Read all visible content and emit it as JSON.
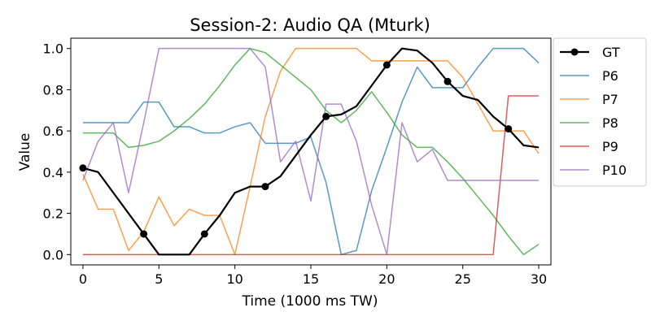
{
  "chart_data": {
    "type": "line",
    "title": "Session-2: Audio QA (Mturk)",
    "xlabel": "Time (1000 ms TW)",
    "ylabel": "Value",
    "xlim": [
      -0.8,
      30.8
    ],
    "ylim": [
      -0.05,
      1.05
    ],
    "xticks": [
      0,
      5,
      10,
      15,
      20,
      25,
      30
    ],
    "yticks": [
      0.0,
      0.2,
      0.4,
      0.6,
      0.8,
      1.0
    ],
    "xtick_labels": [
      "0",
      "5",
      "10",
      "15",
      "20",
      "25",
      "30"
    ],
    "ytick_labels": [
      "0.0",
      "0.2",
      "0.4",
      "0.6",
      "0.8",
      "1.0"
    ],
    "grid": false,
    "legend_position": "outside-right",
    "x": [
      0,
      1,
      2,
      3,
      4,
      5,
      6,
      7,
      8,
      9,
      10,
      11,
      12,
      13,
      14,
      15,
      16,
      17,
      18,
      19,
      20,
      21,
      22,
      23,
      24,
      25,
      26,
      27,
      28,
      29,
      30
    ],
    "series": [
      {
        "name": "GT",
        "color": "#000000",
        "marker": "circle",
        "marker_every": 4,
        "values": [
          0.42,
          0.4,
          0.3,
          0.2,
          0.1,
          0.0,
          0.0,
          0.0,
          0.1,
          0.19,
          0.3,
          0.33,
          0.33,
          0.38,
          0.48,
          0.58,
          0.67,
          0.68,
          0.72,
          0.82,
          0.92,
          1.0,
          0.99,
          0.93,
          0.84,
          0.77,
          0.75,
          0.67,
          0.61,
          0.53,
          0.52
        ]
      },
      {
        "name": "P6",
        "color": "#1f77b4",
        "values": [
          0.64,
          0.64,
          0.64,
          0.64,
          0.74,
          0.74,
          0.62,
          0.62,
          0.59,
          0.59,
          0.62,
          0.64,
          0.54,
          0.54,
          0.54,
          0.57,
          0.35,
          0.0,
          0.02,
          0.31,
          0.52,
          0.74,
          0.91,
          0.81,
          0.81,
          0.81,
          0.91,
          1.0,
          1.0,
          1.0,
          0.93
        ]
      },
      {
        "name": "P7",
        "color": "#ff7f0e",
        "values": [
          0.39,
          0.22,
          0.22,
          0.02,
          0.11,
          0.28,
          0.14,
          0.22,
          0.19,
          0.19,
          0.0,
          0.33,
          0.67,
          0.89,
          1.0,
          1.0,
          1.0,
          1.0,
          1.0,
          0.94,
          0.94,
          0.94,
          0.94,
          0.94,
          0.94,
          0.86,
          0.73,
          0.6,
          0.6,
          0.6,
          0.49
        ]
      },
      {
        "name": "P8",
        "color": "#2ca02c",
        "values": [
          0.59,
          0.59,
          0.59,
          0.52,
          0.53,
          0.55,
          0.6,
          0.66,
          0.73,
          0.82,
          0.92,
          1.0,
          0.98,
          0.92,
          0.86,
          0.8,
          0.7,
          0.64,
          0.7,
          0.79,
          0.69,
          0.58,
          0.52,
          0.52,
          0.45,
          0.37,
          0.28,
          0.19,
          0.09,
          0.0,
          0.05
        ]
      },
      {
        "name": "P9",
        "color": "#d62728",
        "values": [
          0,
          0,
          0,
          0,
          0,
          0,
          0,
          0,
          0,
          0,
          0,
          0,
          0,
          0,
          0,
          0,
          0,
          0,
          0,
          0,
          0,
          0,
          0,
          0,
          0,
          0,
          0,
          0,
          0.77,
          0.77,
          0.77
        ]
      },
      {
        "name": "P10",
        "color": "#9467bd",
        "values": [
          0.36,
          0.55,
          0.64,
          0.3,
          0.64,
          1.0,
          1.0,
          1.0,
          1.0,
          1.0,
          1.0,
          1.0,
          0.91,
          0.45,
          0.55,
          0.26,
          0.73,
          0.73,
          0.55,
          0.24,
          0.0,
          0.64,
          0.45,
          0.51,
          0.36,
          0.36,
          0.36,
          0.36,
          0.36,
          0.36,
          0.36
        ]
      }
    ]
  }
}
